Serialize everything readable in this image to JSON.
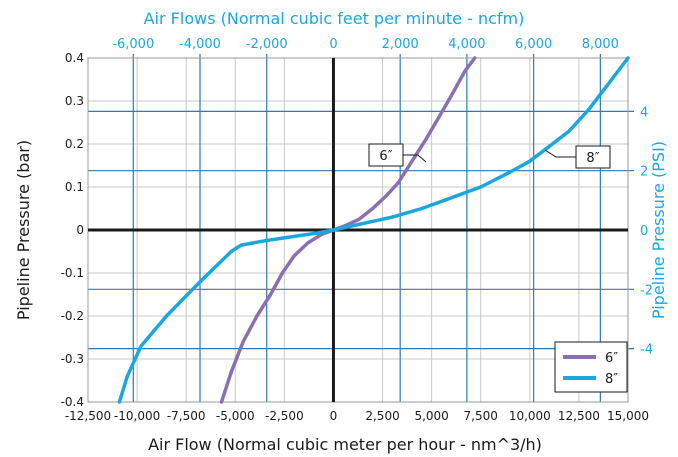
{
  "chart_data": {
    "type": "line",
    "title": "Air Flows (Normal cubic feet per minute - ncfm)",
    "xlabel": "Air Flow (Normal cubic meter per hour - nm^3/h)",
    "ylabel": "Pipeline Pressure (bar)",
    "ylabel_right": "Pipeline Pressure (PSI)",
    "xlim": [
      -12500,
      15000
    ],
    "ylim": [
      -0.4,
      0.4
    ],
    "x_ticks": [
      "-12,500",
      "-10,000",
      "-7,500",
      "-5,000",
      "-2,500",
      "0",
      "2,500",
      "5,000",
      "7,500",
      "10,000",
      "12,500",
      "15,000"
    ],
    "y_ticks": [
      "0.4",
      "0.3",
      "0.2",
      "0.1",
      "0",
      "-0.1",
      "-0.2",
      "-0.3",
      "-0.4"
    ],
    "x2_ticks": [
      "-6,000",
      "-4,000",
      "-2,000",
      "0",
      "2,000",
      "4,000",
      "6,000",
      "8,000"
    ],
    "y2_ticks": [
      "4",
      "2",
      "0",
      "-2",
      "-4"
    ],
    "grid": true,
    "legend_position": "bottom-right",
    "colors": {
      "primary_axis": "#1a1a1a",
      "secondary_axis": "#1aa7e0",
      "secondary_grid": "#2a7ab8",
      "grid": "#c8c8c8"
    },
    "series": [
      {
        "name": "6″",
        "color": "#8b6fb3",
        "x": [
          -5700,
          -5200,
          -4600,
          -3900,
          -3200,
          -2600,
          -2000,
          -1300,
          -600,
          0,
          600,
          1300,
          2000,
          2700,
          3300,
          4000,
          4700,
          5400,
          6100,
          6700,
          7200
        ],
        "y": [
          -0.4,
          -0.33,
          -0.26,
          -0.2,
          -0.15,
          -0.1,
          -0.06,
          -0.03,
          -0.01,
          0,
          0.01,
          0.025,
          0.05,
          0.08,
          0.11,
          0.16,
          0.21,
          0.265,
          0.32,
          0.37,
          0.4
        ]
      },
      {
        "name": "8″",
        "color": "#1aa7e0",
        "x": [
          -10900,
          -10500,
          -9800,
          -8500,
          -7000,
          -6000,
          -5200,
          -4700,
          -3500,
          -2000,
          -800,
          0,
          1500,
          3000,
          4500,
          6000,
          7500,
          9000,
          10000,
          11000,
          12000,
          13000,
          14000,
          15000
        ],
        "y": [
          -0.4,
          -0.34,
          -0.27,
          -0.2,
          -0.13,
          -0.085,
          -0.05,
          -0.035,
          -0.025,
          -0.015,
          -0.007,
          0,
          0.015,
          0.03,
          0.05,
          0.075,
          0.1,
          0.135,
          0.16,
          0.195,
          0.23,
          0.28,
          0.34,
          0.4
        ]
      }
    ],
    "annotations": [
      "6″",
      "8″"
    ]
  }
}
